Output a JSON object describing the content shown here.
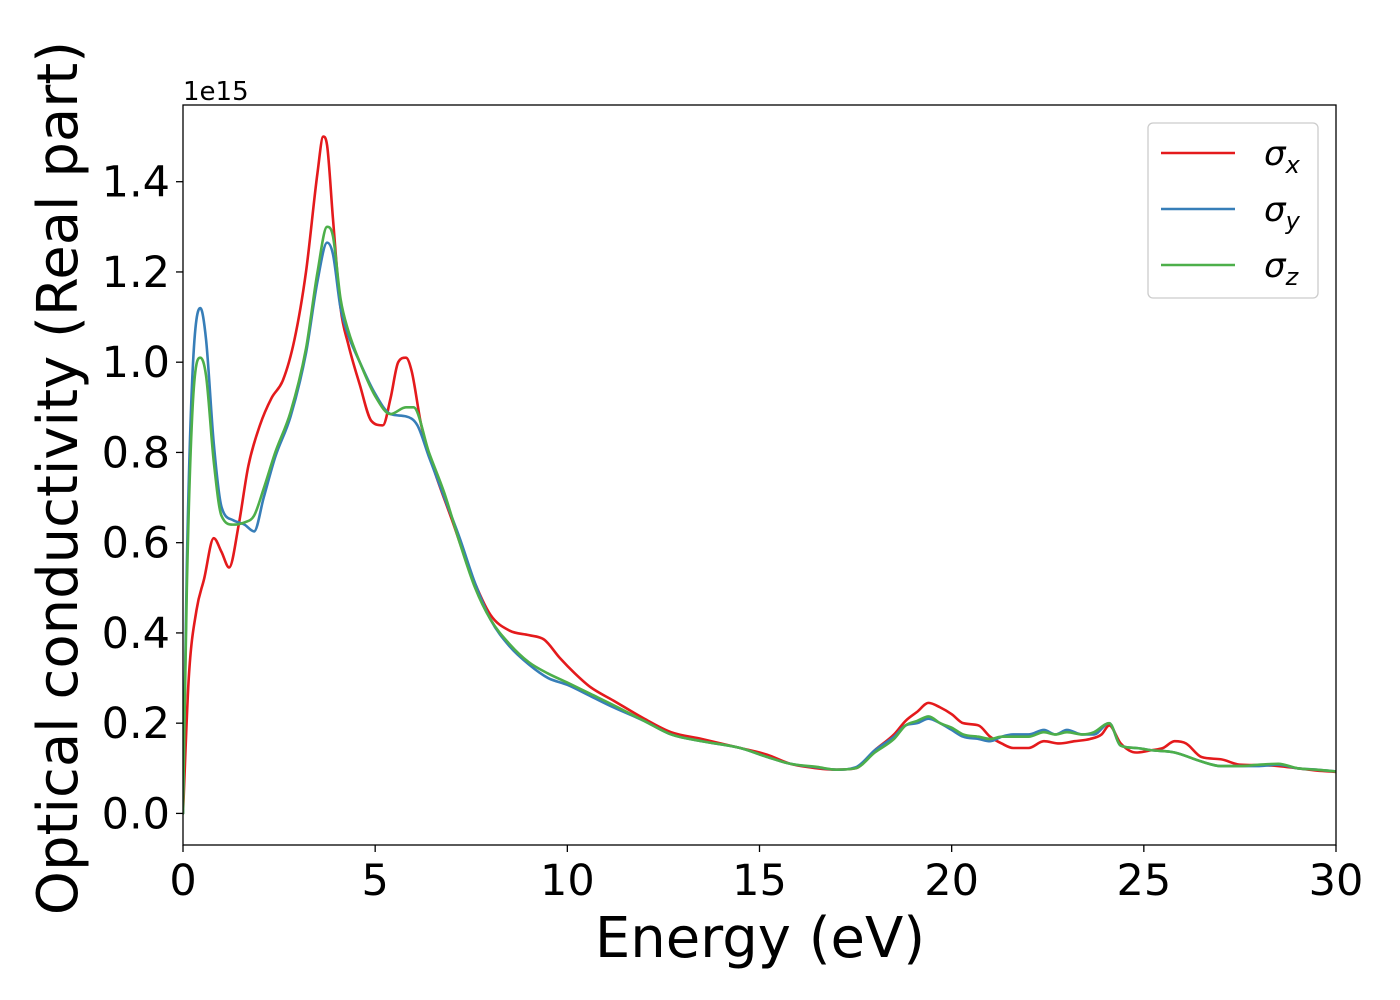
{
  "chart_data": {
    "type": "line",
    "title": "",
    "xlabel": "Energy (eV)",
    "ylabel": "Optical conductivity (Real part)",
    "y_offset_label": "1e15",
    "xlim": [
      0,
      30
    ],
    "ylim": [
      -0.07,
      1.57
    ],
    "x_ticks": [
      0,
      5,
      10,
      15,
      20,
      25,
      30
    ],
    "x_tick_labels": [
      "0",
      "5",
      "10",
      "15",
      "20",
      "25",
      "30"
    ],
    "y_ticks": [
      0.0,
      0.2,
      0.4,
      0.6,
      0.8,
      1.0,
      1.2,
      1.4
    ],
    "y_tick_labels": [
      "0.0",
      "0.2",
      "0.4",
      "0.6",
      "0.8",
      "1.0",
      "1.2",
      "1.4"
    ],
    "grid": false,
    "legend_position": "top-right",
    "series": [
      {
        "name": "σx",
        "legend_symbol": "σ",
        "legend_sub": "x",
        "color": "#e41a1c",
        "x": [
          0,
          0.15,
          0.35,
          0.55,
          0.8,
          1.0,
          1.2,
          1.45,
          1.7,
          2.0,
          2.3,
          2.6,
          2.9,
          3.2,
          3.5,
          3.65,
          3.75,
          3.9,
          4.1,
          4.3,
          4.6,
          4.9,
          5.2,
          5.4,
          5.6,
          5.8,
          5.95,
          6.2,
          6.5,
          7.0,
          7.5,
          8.0,
          8.5,
          9.0,
          9.4,
          9.8,
          10.2,
          10.6,
          11.2,
          12.0,
          12.7,
          13.5,
          14.5,
          15.2,
          15.8,
          16.5,
          17.0,
          17.5,
          18.0,
          18.5,
          18.8,
          19.1,
          19.4,
          19.7,
          20.0,
          20.3,
          20.7,
          21.0,
          21.3,
          21.6,
          22.0,
          22.4,
          22.8,
          23.2,
          23.6,
          23.9,
          24.1,
          24.4,
          24.8,
          25.2,
          25.5,
          25.8,
          26.1,
          26.5,
          27.0,
          27.5,
          28.0,
          28.5,
          29.0,
          29.5,
          30.0
        ],
        "y": [
          0.0,
          0.3,
          0.45,
          0.52,
          0.61,
          0.58,
          0.545,
          0.64,
          0.77,
          0.86,
          0.92,
          0.96,
          1.05,
          1.2,
          1.42,
          1.5,
          1.48,
          1.32,
          1.12,
          1.04,
          0.95,
          0.87,
          0.86,
          0.92,
          1.0,
          1.01,
          0.98,
          0.86,
          0.77,
          0.65,
          0.53,
          0.44,
          0.405,
          0.395,
          0.385,
          0.345,
          0.31,
          0.28,
          0.25,
          0.21,
          0.18,
          0.165,
          0.145,
          0.13,
          0.11,
          0.1,
          0.097,
          0.1,
          0.14,
          0.175,
          0.205,
          0.225,
          0.245,
          0.235,
          0.22,
          0.2,
          0.195,
          0.17,
          0.155,
          0.145,
          0.145,
          0.16,
          0.155,
          0.16,
          0.165,
          0.175,
          0.195,
          0.155,
          0.135,
          0.14,
          0.145,
          0.16,
          0.155,
          0.125,
          0.12,
          0.108,
          0.107,
          0.105,
          0.1,
          0.095,
          0.092
        ]
      },
      {
        "name": "σy",
        "legend_symbol": "σ",
        "legend_sub": "y",
        "color": "#377eb8",
        "x": [
          0,
          0.1,
          0.25,
          0.45,
          0.6,
          0.8,
          1.0,
          1.3,
          1.6,
          1.85,
          2.1,
          2.4,
          2.8,
          3.2,
          3.5,
          3.75,
          3.9,
          4.1,
          4.3,
          4.6,
          5.0,
          5.4,
          5.8,
          6.1,
          6.4,
          6.8,
          7.2,
          7.6,
          8.0,
          8.5,
          9.0,
          9.5,
          10.0,
          10.6,
          11.2,
          12.0,
          12.7,
          13.5,
          14.5,
          15.2,
          15.8,
          16.5,
          17.0,
          17.5,
          18.0,
          18.5,
          18.8,
          19.1,
          19.4,
          19.7,
          20.0,
          20.3,
          20.7,
          21.0,
          21.3,
          21.6,
          22.0,
          22.4,
          22.7,
          23.0,
          23.4,
          23.7,
          24.1,
          24.4,
          24.8,
          25.2,
          25.8,
          26.5,
          27.0,
          27.5,
          28.0,
          28.5,
          29.0,
          29.5,
          30.0
        ],
        "y": [
          0.0,
          0.55,
          0.98,
          1.12,
          1.05,
          0.82,
          0.68,
          0.65,
          0.64,
          0.625,
          0.7,
          0.79,
          0.88,
          1.02,
          1.18,
          1.265,
          1.24,
          1.12,
          1.06,
          1.0,
          0.93,
          0.885,
          0.88,
          0.86,
          0.79,
          0.7,
          0.61,
          0.51,
          0.43,
          0.37,
          0.33,
          0.3,
          0.285,
          0.26,
          0.235,
          0.205,
          0.175,
          0.16,
          0.145,
          0.125,
          0.11,
          0.102,
          0.097,
          0.102,
          0.14,
          0.17,
          0.195,
          0.2,
          0.21,
          0.2,
          0.185,
          0.17,
          0.165,
          0.16,
          0.17,
          0.175,
          0.175,
          0.185,
          0.175,
          0.185,
          0.175,
          0.175,
          0.2,
          0.15,
          0.145,
          0.14,
          0.135,
          0.115,
          0.105,
          0.105,
          0.105,
          0.108,
          0.1,
          0.097,
          0.093
        ]
      },
      {
        "name": "σz",
        "legend_symbol": "σ",
        "legend_sub": "z",
        "color": "#4daf4a",
        "x": [
          0,
          0.1,
          0.25,
          0.45,
          0.6,
          0.8,
          1.0,
          1.3,
          1.6,
          1.85,
          2.1,
          2.4,
          2.8,
          3.2,
          3.5,
          3.75,
          3.9,
          4.1,
          4.3,
          4.6,
          5.0,
          5.4,
          5.8,
          6.0,
          6.4,
          6.8,
          7.2,
          7.6,
          8.0,
          8.5,
          9.0,
          9.5,
          10.0,
          10.6,
          11.2,
          12.0,
          12.7,
          13.5,
          14.5,
          15.2,
          15.8,
          16.5,
          17.0,
          17.5,
          18.0,
          18.5,
          18.8,
          19.1,
          19.4,
          19.7,
          20.0,
          20.3,
          20.7,
          21.0,
          21.3,
          21.6,
          22.0,
          22.4,
          22.7,
          23.0,
          23.4,
          23.7,
          24.1,
          24.4,
          24.8,
          25.2,
          25.8,
          26.5,
          27.0,
          27.5,
          28.0,
          28.5,
          29.0,
          29.5,
          30.0
        ],
        "y": [
          0.0,
          0.5,
          0.9,
          1.01,
          0.97,
          0.78,
          0.66,
          0.64,
          0.645,
          0.66,
          0.72,
          0.8,
          0.89,
          1.03,
          1.2,
          1.3,
          1.28,
          1.14,
          1.07,
          1.0,
          0.925,
          0.885,
          0.9,
          0.9,
          0.8,
          0.71,
          0.6,
          0.5,
          0.43,
          0.375,
          0.335,
          0.31,
          0.29,
          0.265,
          0.24,
          0.205,
          0.175,
          0.16,
          0.145,
          0.125,
          0.11,
          0.103,
          0.097,
          0.1,
          0.135,
          0.165,
          0.195,
          0.205,
          0.215,
          0.2,
          0.19,
          0.175,
          0.17,
          0.165,
          0.17,
          0.17,
          0.17,
          0.18,
          0.175,
          0.18,
          0.175,
          0.18,
          0.2,
          0.15,
          0.145,
          0.14,
          0.135,
          0.115,
          0.105,
          0.105,
          0.108,
          0.11,
          0.1,
          0.097,
          0.093
        ]
      }
    ]
  }
}
